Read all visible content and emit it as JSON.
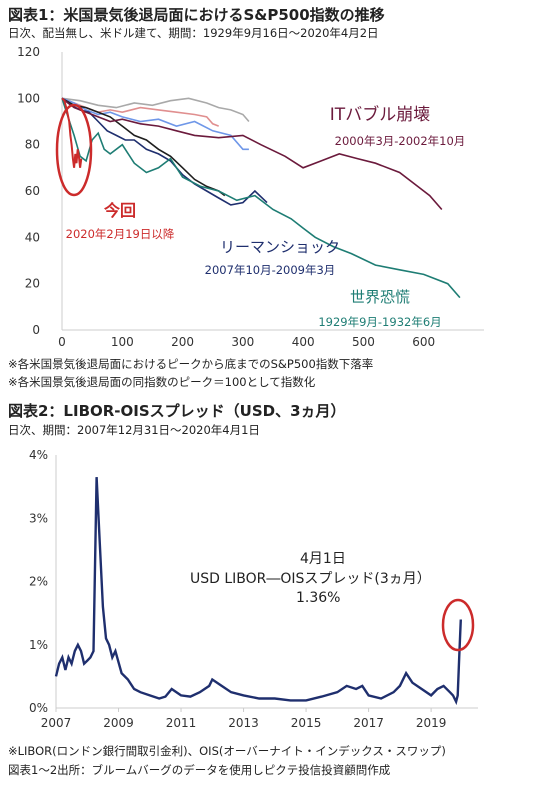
{
  "chart1": {
    "title": "図表1：米国景気後退局面におけるS&P500指数の推移",
    "subtitle": "日次、配当無し、米ドル建て、期間：1929年9月16日～2020年4月2日",
    "notes": [
      "※各米国景気後退局面におけるピークから底までのS&P500指数下落率",
      "※各米国景気後退局面の同指数のピーク＝100として指数化"
    ]
  },
  "chart2": {
    "title": "図表2：LIBOR-OISスプレッド（USD、3ヵ月）",
    "subtitle": "日次、期間：2007年12月31日～2020年4月1日",
    "annotation": [
      "4月1日",
      "USD LIBOR―OISスプレッド(3ヵ月）",
      "1.36%"
    ],
    "notes": [
      "※LIBOR(ロンドン銀行間取引金利)、OIS(オーバーナイト・インデックス・スワップ)",
      "図表1～2出所：ブルームバーグのデータを使用しピクテ投信投資顧問作成"
    ]
  },
  "colors": {
    "covid": "#cc2b2b",
    "dotcom": "#6b1a3c",
    "gfc": "#1f2f6e",
    "depression": "#1e7d74",
    "ltblue": "#6f97e8",
    "pink": "#e08f8f",
    "gray": "#a9a9a9",
    "black": "#1f1f1f",
    "libor": "#1f2f6e",
    "axis": "#cccccc"
  },
  "chart_data": [
    {
      "type": "line",
      "title": "図表1：米国景気後退局面におけるS&P500指数の推移",
      "xlabel": "",
      "ylabel": "",
      "xlim": [
        0,
        700
      ],
      "ylim": [
        0,
        120
      ],
      "xticks": [
        "0",
        "100",
        "200",
        "300",
        "400",
        "500",
        "600"
      ],
      "yticks": [
        "0",
        "20",
        "40",
        "60",
        "80",
        "100",
        "120"
      ],
      "grid": false,
      "annotations": [
        {
          "label": "ITバブル崩壊",
          "sub": "2000年3月-2002年10月",
          "color": "dotcom"
        },
        {
          "label": "今回",
          "sub": "2020年2月19日以降",
          "color": "covid"
        },
        {
          "label": "リーマンショック",
          "sub": "2007年10月-2009年3月",
          "color": "gfc"
        },
        {
          "label": "世界恐慌",
          "sub": "1929年9月-1932年6月",
          "color": "depression"
        }
      ],
      "series": [
        {
          "color": "dotcom",
          "x": [
            0,
            20,
            40,
            60,
            80,
            100,
            130,
            160,
            190,
            220,
            260,
            300,
            330,
            370,
            400,
            430,
            460,
            490,
            520,
            560,
            590,
            610,
            630
          ],
          "y": [
            100,
            96,
            94,
            92,
            90,
            91,
            89,
            88,
            86,
            84,
            83,
            84,
            80,
            75,
            70,
            73,
            76,
            74,
            72,
            68,
            62,
            58,
            52
          ]
        },
        {
          "color": "covid",
          "x": [
            0,
            4,
            8,
            12,
            14,
            16,
            18,
            20,
            22,
            24,
            26,
            28,
            30,
            32
          ],
          "y": [
            100,
            99,
            95,
            90,
            84,
            80,
            74,
            70,
            76,
            72,
            78,
            75,
            70,
            74
          ]
        },
        {
          "color": "gfc",
          "x": [
            0,
            15,
            30,
            45,
            60,
            75,
            90,
            105,
            120,
            140,
            160,
            180,
            200,
            220,
            240,
            260,
            280,
            300,
            320,
            340
          ],
          "y": [
            100,
            97,
            95,
            94,
            90,
            86,
            84,
            82,
            82,
            78,
            76,
            73,
            67,
            63,
            60,
            57,
            54,
            55,
            60,
            55
          ]
        },
        {
          "color": "depression",
          "x": [
            0,
            10,
            20,
            30,
            40,
            50,
            60,
            70,
            80,
            100,
            120,
            140,
            160,
            180,
            200,
            230,
            260,
            290,
            320,
            350,
            380,
            400,
            420,
            450,
            480,
            520,
            560,
            600,
            640,
            660
          ],
          "y": [
            100,
            92,
            84,
            75,
            73,
            82,
            85,
            78,
            76,
            80,
            72,
            68,
            70,
            74,
            66,
            62,
            60,
            56,
            58,
            52,
            48,
            44,
            40,
            36,
            33,
            28,
            26,
            24,
            20,
            14
          ]
        },
        {
          "color": "ltblue",
          "x": [
            0,
            20,
            40,
            60,
            80,
            100,
            130,
            160,
            190,
            220,
            250,
            280,
            300,
            310
          ],
          "y": [
            100,
            98,
            95,
            93,
            94,
            92,
            90,
            91,
            88,
            90,
            86,
            84,
            78,
            78
          ]
        },
        {
          "color": "pink",
          "x": [
            0,
            20,
            40,
            60,
            80,
            100,
            130,
            160,
            190,
            220,
            240,
            250,
            260
          ],
          "y": [
            100,
            98,
            96,
            94,
            95,
            94,
            96,
            95,
            94,
            93,
            92,
            89,
            88
          ]
        },
        {
          "color": "gray",
          "x": [
            0,
            30,
            60,
            90,
            120,
            150,
            180,
            210,
            240,
            260,
            280,
            300,
            310
          ],
          "y": [
            100,
            99,
            97,
            96,
            98,
            97,
            99,
            100,
            98,
            96,
            95,
            93,
            90
          ]
        },
        {
          "color": "black",
          "x": [
            0,
            20,
            40,
            60,
            80,
            100,
            120,
            140,
            160,
            180,
            200,
            220,
            240,
            260,
            270
          ],
          "y": [
            100,
            97,
            96,
            94,
            92,
            88,
            84,
            82,
            78,
            75,
            70,
            65,
            62,
            60,
            58
          ]
        }
      ]
    },
    {
      "type": "line",
      "title": "図表2：LIBOR-OISスプレッド（USD、3ヵ月）",
      "xlabel": "",
      "ylabel": "",
      "xlim": [
        2007,
        2020.5
      ],
      "ylim": [
        0,
        4
      ],
      "xticks": [
        "2007",
        "2009",
        "2011",
        "2013",
        "2015",
        "2017",
        "2019"
      ],
      "yticks": [
        "0%",
        "1%",
        "2%",
        "3%",
        "4%"
      ],
      "series": [
        {
          "color": "libor",
          "x": [
            2007.0,
            2007.1,
            2007.2,
            2007.3,
            2007.4,
            2007.5,
            2007.6,
            2007.7,
            2007.8,
            2007.85,
            2007.9,
            2008.0,
            2008.1,
            2008.2,
            2008.3,
            2008.4,
            2008.5,
            2008.6,
            2008.7,
            2008.8,
            2008.9,
            2009.1,
            2009.3,
            2009.5,
            2009.7,
            2010.0,
            2010.3,
            2010.5,
            2010.7,
            2011.0,
            2011.3,
            2011.6,
            2011.9,
            2012.0,
            2012.3,
            2012.6,
            2013.0,
            2013.5,
            2014.0,
            2014.5,
            2015.0,
            2015.5,
            2016.0,
            2016.3,
            2016.6,
            2016.8,
            2017.0,
            2017.4,
            2017.8,
            2018.0,
            2018.2,
            2018.4,
            2018.7,
            2019.0,
            2019.2,
            2019.4,
            2019.6,
            2019.7,
            2019.8,
            2019.85,
            2019.9,
            2019.95
          ],
          "y": [
            0.5,
            0.7,
            0.8,
            0.6,
            0.8,
            0.7,
            0.9,
            1.0,
            0.9,
            0.8,
            0.7,
            0.75,
            0.8,
            0.9,
            3.65,
            2.6,
            1.6,
            1.1,
            1.0,
            0.8,
            0.9,
            0.55,
            0.45,
            0.3,
            0.25,
            0.2,
            0.15,
            0.18,
            0.3,
            0.2,
            0.18,
            0.25,
            0.35,
            0.45,
            0.35,
            0.25,
            0.2,
            0.15,
            0.15,
            0.12,
            0.12,
            0.18,
            0.25,
            0.35,
            0.3,
            0.35,
            0.2,
            0.15,
            0.25,
            0.35,
            0.55,
            0.4,
            0.3,
            0.2,
            0.3,
            0.35,
            0.25,
            0.2,
            0.1,
            0.2,
            0.8,
            1.4
          ]
        }
      ]
    }
  ]
}
